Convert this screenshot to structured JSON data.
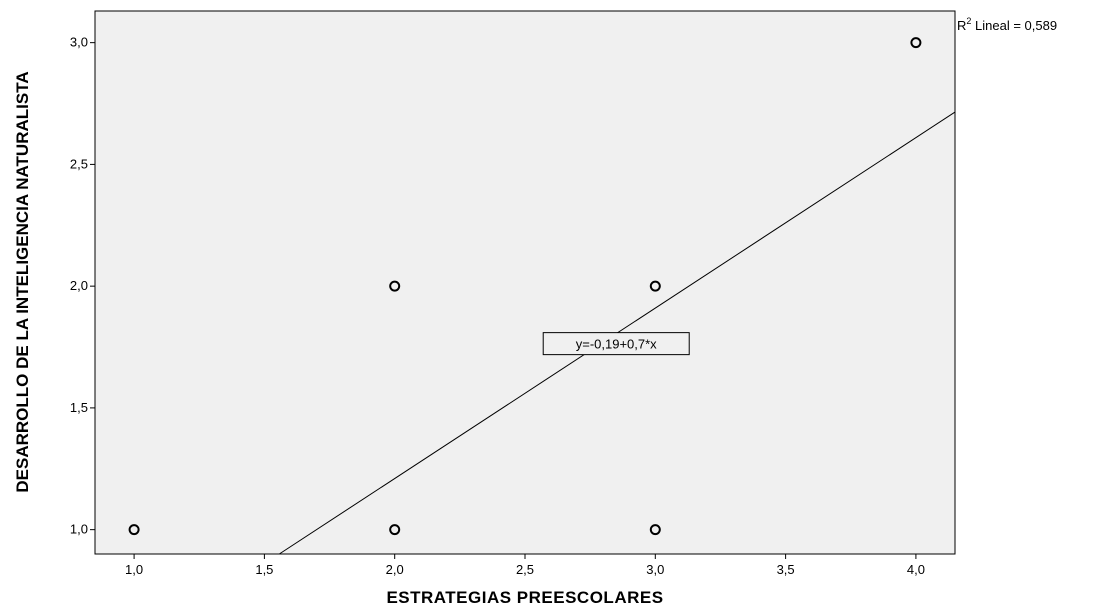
{
  "chart_data": {
    "type": "scatter",
    "xlabel": "ESTRATEGIAS PREESCOLARES",
    "ylabel": "DESARROLLO DE LA INTELIGENCIA NATURALISTA",
    "xlim": [
      0.85,
      4.15
    ],
    "ylim": [
      0.9,
      3.13
    ],
    "x_ticks": [
      1.0,
      1.5,
      2.0,
      2.5,
      3.0,
      3.5,
      4.0
    ],
    "y_ticks": [
      1.0,
      1.5,
      2.0,
      2.5,
      3.0
    ],
    "x_tick_labels": [
      "1,0",
      "1,5",
      "2,0",
      "2,5",
      "3,0",
      "3,5",
      "4,0"
    ],
    "y_tick_labels": [
      "1,0",
      "1,5",
      "2,0",
      "2,5",
      "3,0"
    ],
    "points": [
      {
        "x": 1,
        "y": 1
      },
      {
        "x": 2,
        "y": 1
      },
      {
        "x": 2,
        "y": 2
      },
      {
        "x": 3,
        "y": 1
      },
      {
        "x": 3,
        "y": 2
      },
      {
        "x": 4,
        "y": 3
      }
    ],
    "fit_line": {
      "intercept": -0.19,
      "slope": 0.7
    },
    "fit_label": "y=-0,19+0,7*x",
    "r2_label": {
      "prefix": "R",
      "superscript": "2",
      "rest": " Lineal = 0,589"
    },
    "plot_background": "#f0f0f0",
    "grid": false
  }
}
